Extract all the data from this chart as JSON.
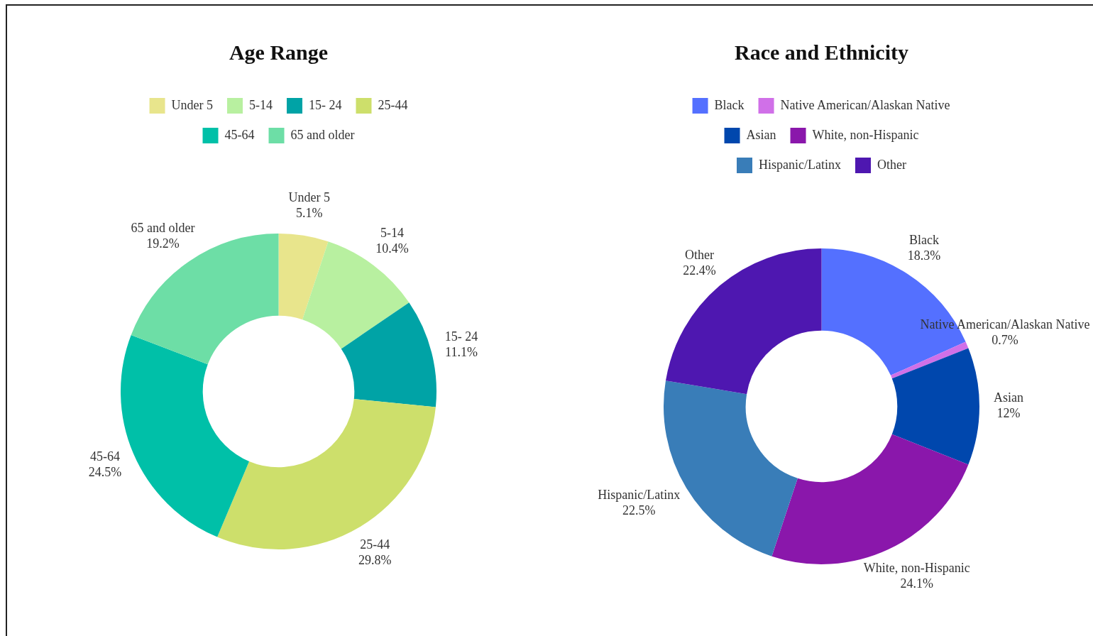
{
  "chart_data": [
    {
      "type": "donut",
      "title": "Age Range",
      "categories": [
        "Under 5",
        "5-14",
        "15- 24",
        "25-44",
        "45-64",
        "65 and older"
      ],
      "values": [
        5.1,
        10.4,
        11.1,
        29.8,
        24.5,
        19.2
      ],
      "value_labels": [
        "5.1%",
        "10.4%",
        "11.1%",
        "29.8%",
        "24.5%",
        "19.2%"
      ],
      "colors": [
        "#e8e58c",
        "#b8f0a0",
        "#00a3a6",
        "#cddf6b",
        "#00c0a8",
        "#6ddea6"
      ],
      "legend": "top"
    },
    {
      "type": "donut",
      "title": "Race and Ethnicity",
      "categories": [
        "Black",
        "Native American/Alaskan Native",
        "Asian",
        "White, non-Hispanic",
        "Hispanic/Latinx",
        "Other"
      ],
      "values": [
        18.3,
        0.7,
        12,
        24.1,
        22.5,
        22.4
      ],
      "value_labels": [
        "18.3%",
        "0.7%",
        "12%",
        "24.1%",
        "22.5%",
        "22.4%"
      ],
      "colors": [
        "#5470ff",
        "#d070e8",
        "#0047ad",
        "#8a17ab",
        "#397db8",
        "#4e17b0"
      ],
      "legend": "top"
    }
  ]
}
